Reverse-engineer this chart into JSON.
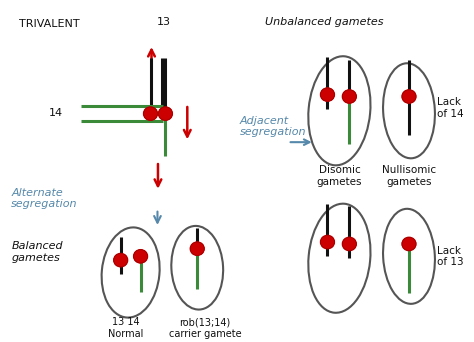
{
  "bg_color": "#ffffff",
  "red": "#cc0000",
  "green": "#3a8a3a",
  "black": "#111111",
  "blue_arrow": "#5588aa",
  "circle_fill": "#cc0000",
  "ellipse_edge": "#555555",
  "trivalent_label": "TRIVALENT",
  "chr13_label": "13",
  "chr14_label": "14",
  "alt_seg_label": "Alternate\nsegregation",
  "adj_seg_label": "Adjacent\nsegregation",
  "unbalanced_label": "Unbalanced gametes",
  "balanced_label": "Balanced\ngametes",
  "normal_label": "13 14\nNormal",
  "carrier_label": "rob(13;14)\ncarrier gamete",
  "disomic_label": "Disomic\ngametes",
  "nullisomic_label": "Nullisomic\ngametes",
  "lack14_label": "Lack\nof 14",
  "lack13_label": "Lack\nof 13"
}
